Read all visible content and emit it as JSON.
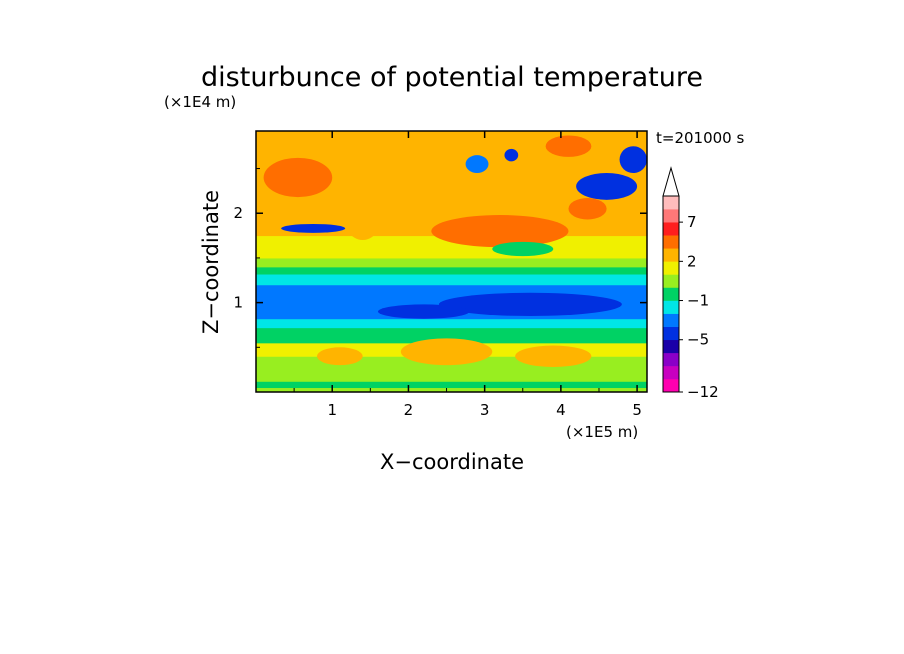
{
  "chart_data": {
    "type": "heatmap",
    "title": "disturbunce of potential temperature",
    "time_label": "t=201000 s",
    "xlabel": "X−coordinate",
    "ylabel": "Z−coordinate",
    "x_scale_label": "(×1E5 m)",
    "y_scale_label": "(×1E4 m)",
    "xlim": [
      0,
      5.13
    ],
    "ylim": [
      0,
      2.92
    ],
    "x_ticks": [
      1,
      2,
      3,
      4,
      5
    ],
    "x_tick_labels": [
      "1",
      "2",
      "3",
      "4",
      "5"
    ],
    "y_ticks": [
      1,
      2
    ],
    "y_tick_labels": [
      "1",
      "2"
    ],
    "grid": false,
    "colorbar": {
      "labels": [
        {
          "value": 7,
          "text": "7"
        },
        {
          "value": 2,
          "text": "2"
        },
        {
          "value": -1,
          "text": "−1"
        },
        {
          "value": -5,
          "text": "−5"
        },
        {
          "value": -12,
          "text": "−12"
        }
      ],
      "colors": [
        "#ff00b0",
        "#c800c0",
        "#8a00c8",
        "#1a00a8",
        "#0030e0",
        "#0078ff",
        "#00e6e6",
        "#00d264",
        "#98ee20",
        "#f0f000",
        "#ffb400",
        "#ff6e00",
        "#ff1e1e",
        "#ff7878",
        "#ffbcbc"
      ],
      "extend_max": true
    },
    "z_bands": [
      {
        "z": [
          0.0,
          0.05
        ],
        "value": 0.3
      },
      {
        "z": [
          0.05,
          0.12
        ],
        "value": -1.0
      },
      {
        "z": [
          0.12,
          0.2
        ],
        "value": 0.2
      },
      {
        "z": [
          0.2,
          0.4
        ],
        "value": 0.8
      },
      {
        "z": [
          0.4,
          0.55
        ],
        "value": 1.3
      },
      {
        "z": [
          0.55,
          0.72
        ],
        "value": -1.0
      },
      {
        "z": [
          0.72,
          0.82
        ],
        "value": -2.0
      },
      {
        "z": [
          0.82,
          1.05
        ],
        "value": -3.0
      },
      {
        "z": [
          1.05,
          1.2
        ],
        "value": -3.0
      },
      {
        "z": [
          1.2,
          1.32
        ],
        "value": -1.8
      },
      {
        "z": [
          1.32,
          1.4
        ],
        "value": -0.8
      },
      {
        "z": [
          1.4,
          1.5
        ],
        "value": 0.5
      },
      {
        "z": [
          1.5,
          1.75
        ],
        "value": 1.4
      },
      {
        "z": [
          1.75,
          2.2
        ],
        "value": 2.0
      },
      {
        "z": [
          2.2,
          2.92
        ],
        "value": 2.5
      }
    ],
    "features": [
      {
        "x": 0.55,
        "z": 2.4,
        "rx": 0.45,
        "rz": 0.22,
        "value": 3.5
      },
      {
        "x": 0.75,
        "z": 1.83,
        "rx": 0.42,
        "rz": 0.05,
        "value": -4.0
      },
      {
        "x": 3.2,
        "z": 1.8,
        "rx": 0.9,
        "rz": 0.18,
        "value": 3.5
      },
      {
        "x": 3.5,
        "z": 1.6,
        "rx": 0.4,
        "rz": 0.08,
        "value": -0.5
      },
      {
        "x": 3.6,
        "z": 0.98,
        "rx": 1.2,
        "rz": 0.13,
        "value": -5.0
      },
      {
        "x": 2.2,
        "z": 0.9,
        "rx": 0.6,
        "rz": 0.08,
        "value": -3.5
      },
      {
        "x": 2.9,
        "z": 2.55,
        "rx": 0.15,
        "rz": 0.1,
        "value": -3.0
      },
      {
        "x": 3.35,
        "z": 2.65,
        "rx": 0.09,
        "rz": 0.07,
        "value": -5.0
      },
      {
        "x": 4.6,
        "z": 2.3,
        "rx": 0.4,
        "rz": 0.15,
        "value": -5.0
      },
      {
        "x": 4.35,
        "z": 2.05,
        "rx": 0.25,
        "rz": 0.12,
        "value": 3.5
      },
      {
        "x": 4.1,
        "z": 2.75,
        "rx": 0.3,
        "rz": 0.12,
        "value": 3.5
      },
      {
        "x": 4.95,
        "z": 2.6,
        "rx": 0.18,
        "rz": 0.15,
        "value": -4.0
      },
      {
        "x": 1.4,
        "z": 2.1,
        "rx": 0.3,
        "rz": 0.4,
        "value": 2.5
      },
      {
        "x": 2.5,
        "z": 0.45,
        "rx": 0.6,
        "rz": 0.15,
        "value": 2.0
      },
      {
        "x": 3.9,
        "z": 0.4,
        "rx": 0.5,
        "rz": 0.12,
        "value": 2.0
      },
      {
        "x": 1.1,
        "z": 0.4,
        "rx": 0.3,
        "rz": 0.1,
        "value": 2.0
      }
    ]
  }
}
